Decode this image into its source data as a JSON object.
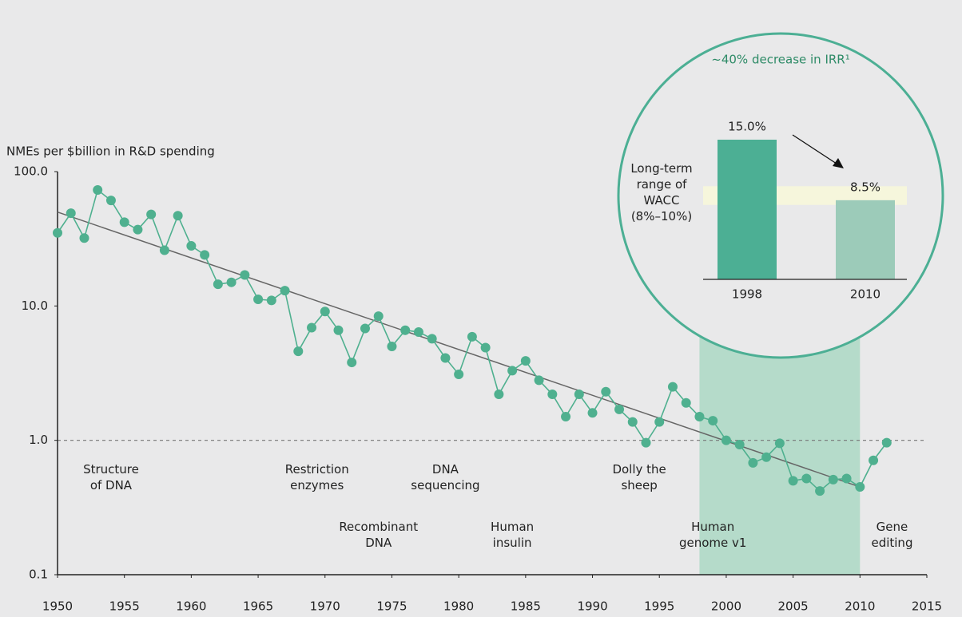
{
  "chart_data": [
    {
      "type": "line",
      "y_axis_label": "NMEs per $billion in R&D spending",
      "log_scale": true,
      "xlim": [
        1950,
        2015
      ],
      "xticks": [
        1950,
        1955,
        1960,
        1965,
        1970,
        1975,
        1980,
        1985,
        1990,
        1995,
        2000,
        2005,
        2010,
        2015
      ],
      "ylim": [
        0.1,
        100
      ],
      "yticks": [
        {
          "value": 100,
          "label": "100.0"
        },
        {
          "value": 10,
          "label": "10.0"
        },
        {
          "value": 1,
          "label": "1.0"
        },
        0.1
      ],
      "reference_line": 1,
      "highlight": [
        1998,
        2010
      ],
      "highlight_color": "#b5dbca",
      "series": [
        {
          "color": "#4fb08f",
          "x": [
            1950,
            1951,
            1952,
            1953,
            1954,
            1955,
            1956,
            1957,
            1958,
            1959,
            1960,
            1961,
            1962,
            1963,
            1964,
            1965,
            1966,
            1967,
            1968,
            1969,
            1970,
            1971,
            1972,
            1973,
            1974,
            1975,
            1976,
            1977,
            1978,
            1979,
            1980,
            1981,
            1982,
            1983,
            1984,
            1985,
            1986,
            1987,
            1988,
            1989,
            1990,
            1991,
            1992,
            1993,
            1994,
            1995,
            1996,
            1997,
            1998,
            1999,
            2000,
            2001,
            2002,
            2003,
            2004,
            2005,
            2006,
            2007,
            2008,
            2009,
            2010,
            2011,
            2012
          ],
          "values": [
            35,
            49,
            32,
            73,
            61,
            42,
            37,
            48,
            26,
            47,
            28,
            24,
            14.5,
            15,
            17,
            11.2,
            11,
            13,
            4.6,
            6.9,
            9.1,
            6.6,
            3.8,
            6.8,
            8.4,
            5.0,
            6.6,
            6.4,
            5.7,
            4.1,
            3.1,
            5.9,
            4.9,
            2.2,
            3.3,
            3.9,
            2.8,
            2.2,
            1.5,
            2.2,
            1.6,
            2.3,
            1.7,
            1.37,
            0.96,
            1.37,
            2.5,
            1.9,
            1.5,
            1.4,
            1.0,
            0.93,
            0.68,
            0.75,
            0.95,
            0.5,
            0.52,
            0.42,
            0.51,
            0.52,
            0.45,
            0.71,
            0.96
          ]
        }
      ],
      "trend": {
        "color": "#666666",
        "x": [
          1950,
          2010
        ],
        "values": [
          50,
          0.45
        ]
      },
      "annotations": [
        {
          "x": 1954,
          "lines": [
            "Structure",
            "of DNA"
          ]
        },
        {
          "x": 1969.4,
          "lines": [
            "Restriction",
            "enzymes"
          ]
        },
        {
          "x": 1979,
          "lines": [
            "DNA",
            "sequencing"
          ]
        },
        {
          "x": 1993.5,
          "lines": [
            "Dolly the",
            "sheep"
          ]
        },
        {
          "x": 1974,
          "lines": [
            "Recombinant",
            "DNA"
          ]
        },
        {
          "x": 1984,
          "lines": [
            "Human",
            "insulin"
          ]
        },
        {
          "x": 1999,
          "lines": [
            "Human",
            "genome v1"
          ]
        },
        {
          "x": 2012.4,
          "lines": [
            "Gene",
            "editing"
          ]
        }
      ]
    },
    {
      "type": "bar",
      "title": "~40% decrease in IRR¹",
      "categories": [
        "1998",
        "2010"
      ],
      "values": [
        15.0,
        8.5
      ],
      "value_labels": [
        "15.0%",
        "8.5%"
      ],
      "colors": [
        "#4caf94",
        "#9ccbb9"
      ],
      "ylim": [
        0,
        15
      ],
      "band": [
        8,
        10
      ],
      "band_color": "#f6f6dc",
      "band_label": [
        "Long-term",
        "range of",
        "WACC",
        "(8%–10%)"
      ]
    }
  ]
}
